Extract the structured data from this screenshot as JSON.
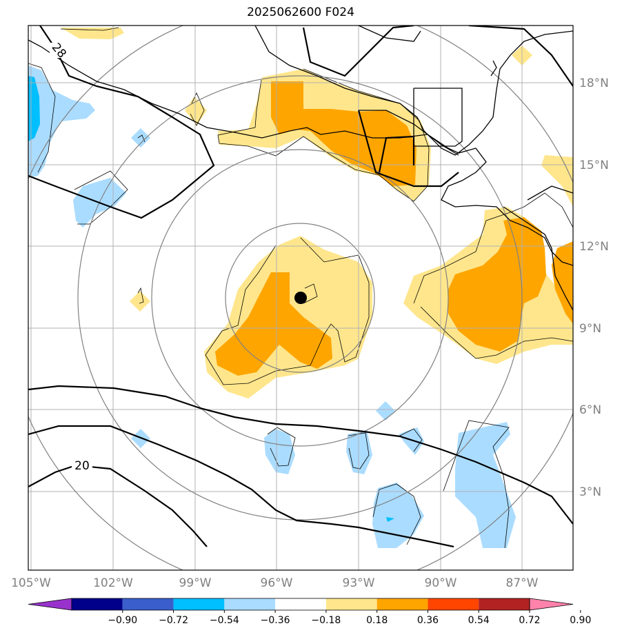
{
  "title": "2025062600 F024",
  "map": {
    "lon_range": [
      -105,
      -85
    ],
    "lat_range": [
      0,
      20
    ],
    "lon_ticks": [
      {
        "value": -105,
        "label": "105°W"
      },
      {
        "value": -102,
        "label": "102°W"
      },
      {
        "value": -99,
        "label": "99°W"
      },
      {
        "value": -96,
        "label": "96°W"
      },
      {
        "value": -93,
        "label": "93°W"
      },
      {
        "value": -90,
        "label": "90°W"
      },
      {
        "value": -87,
        "label": "87°W"
      }
    ],
    "lat_ticks": [
      {
        "value": 3,
        "label": "3°N"
      },
      {
        "value": 6,
        "label": "6°N"
      },
      {
        "value": 9,
        "label": "9°N"
      },
      {
        "value": 12,
        "label": "12°N"
      },
      {
        "value": 15,
        "label": "15°N"
      },
      {
        "value": 18,
        "label": "18°N"
      }
    ],
    "storm_center": {
      "lon": -95.1,
      "lat": 10.0
    },
    "contour_labels": [
      "28",
      "20"
    ],
    "colors": {
      "yellow": "#ffe68c",
      "orange": "#ffa500",
      "lightblue": "#aadcff",
      "cyan": "#00bfff",
      "grid": "#b0b0b0",
      "range_ring": "#808080"
    }
  },
  "colorbar": {
    "labels": [
      "−0.90",
      "−0.72",
      "−0.54",
      "−0.36",
      "−0.18",
      "0.18",
      "0.36",
      "0.54",
      "0.72",
      "0.90"
    ],
    "colors": [
      "#9932cc",
      "#00008b",
      "#3a5fcd",
      "#00bfff",
      "#aadcff",
      "#ffffff",
      "#ffe68c",
      "#ffa500",
      "#ff4500",
      "#b22222",
      "#ff82ab"
    ]
  }
}
